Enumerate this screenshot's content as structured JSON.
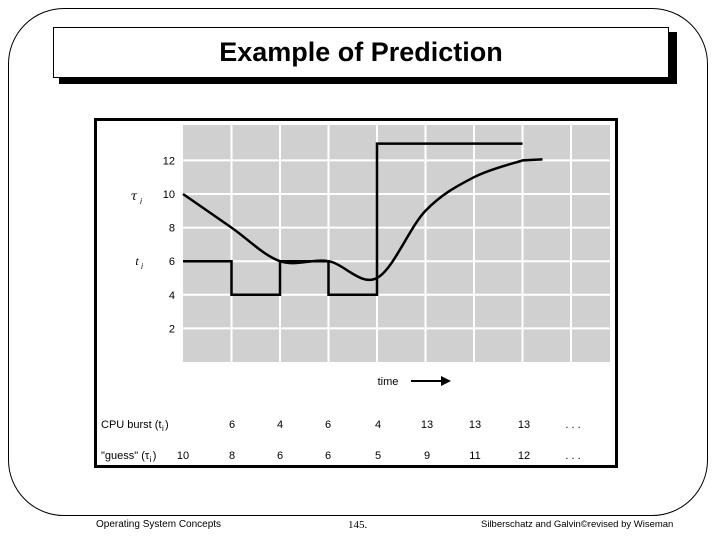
{
  "title": "Example of Prediction",
  "figure": {
    "tau_label": "τ",
    "tau_sub": "i",
    "t_label": "t",
    "t_sub": "i",
    "time_label": "time",
    "y_ticks": [
      "2",
      "4",
      "6",
      "8",
      "10",
      "12"
    ],
    "rows": [
      {
        "label": "CPU burst (t",
        "label_sub": "i",
        "label_end": ")",
        "values": [
          "6",
          "4",
          "6",
          "4",
          "13",
          "13",
          "13",
          ". . ."
        ]
      },
      {
        "label": "\"guess\" (τ",
        "label_sub": "i",
        "label_end": ")",
        "values": [
          "10",
          "8",
          "6",
          "6",
          "5",
          "9",
          "11",
          "12",
          ". . ."
        ]
      }
    ]
  },
  "chart_data": {
    "type": "line",
    "ylim": [
      0,
      14
    ],
    "y_ticks": [
      2,
      4,
      6,
      8,
      10,
      12
    ],
    "series": [
      {
        "name": "t",
        "kind": "step",
        "values": [
          6,
          4,
          6,
          4,
          13,
          13,
          13
        ]
      },
      {
        "name": "τ",
        "kind": "smooth",
        "values": [
          10,
          8,
          6,
          6,
          5,
          9,
          11,
          12
        ]
      }
    ]
  },
  "footer": {
    "left": "Operating System Concepts",
    "center": "145.",
    "right": "Silberschatz and Galvin©revised by Wiseman"
  },
  "colors": {
    "plot_bg": "#d0d0d0",
    "grid": "#ffffff",
    "line": "#000000"
  }
}
